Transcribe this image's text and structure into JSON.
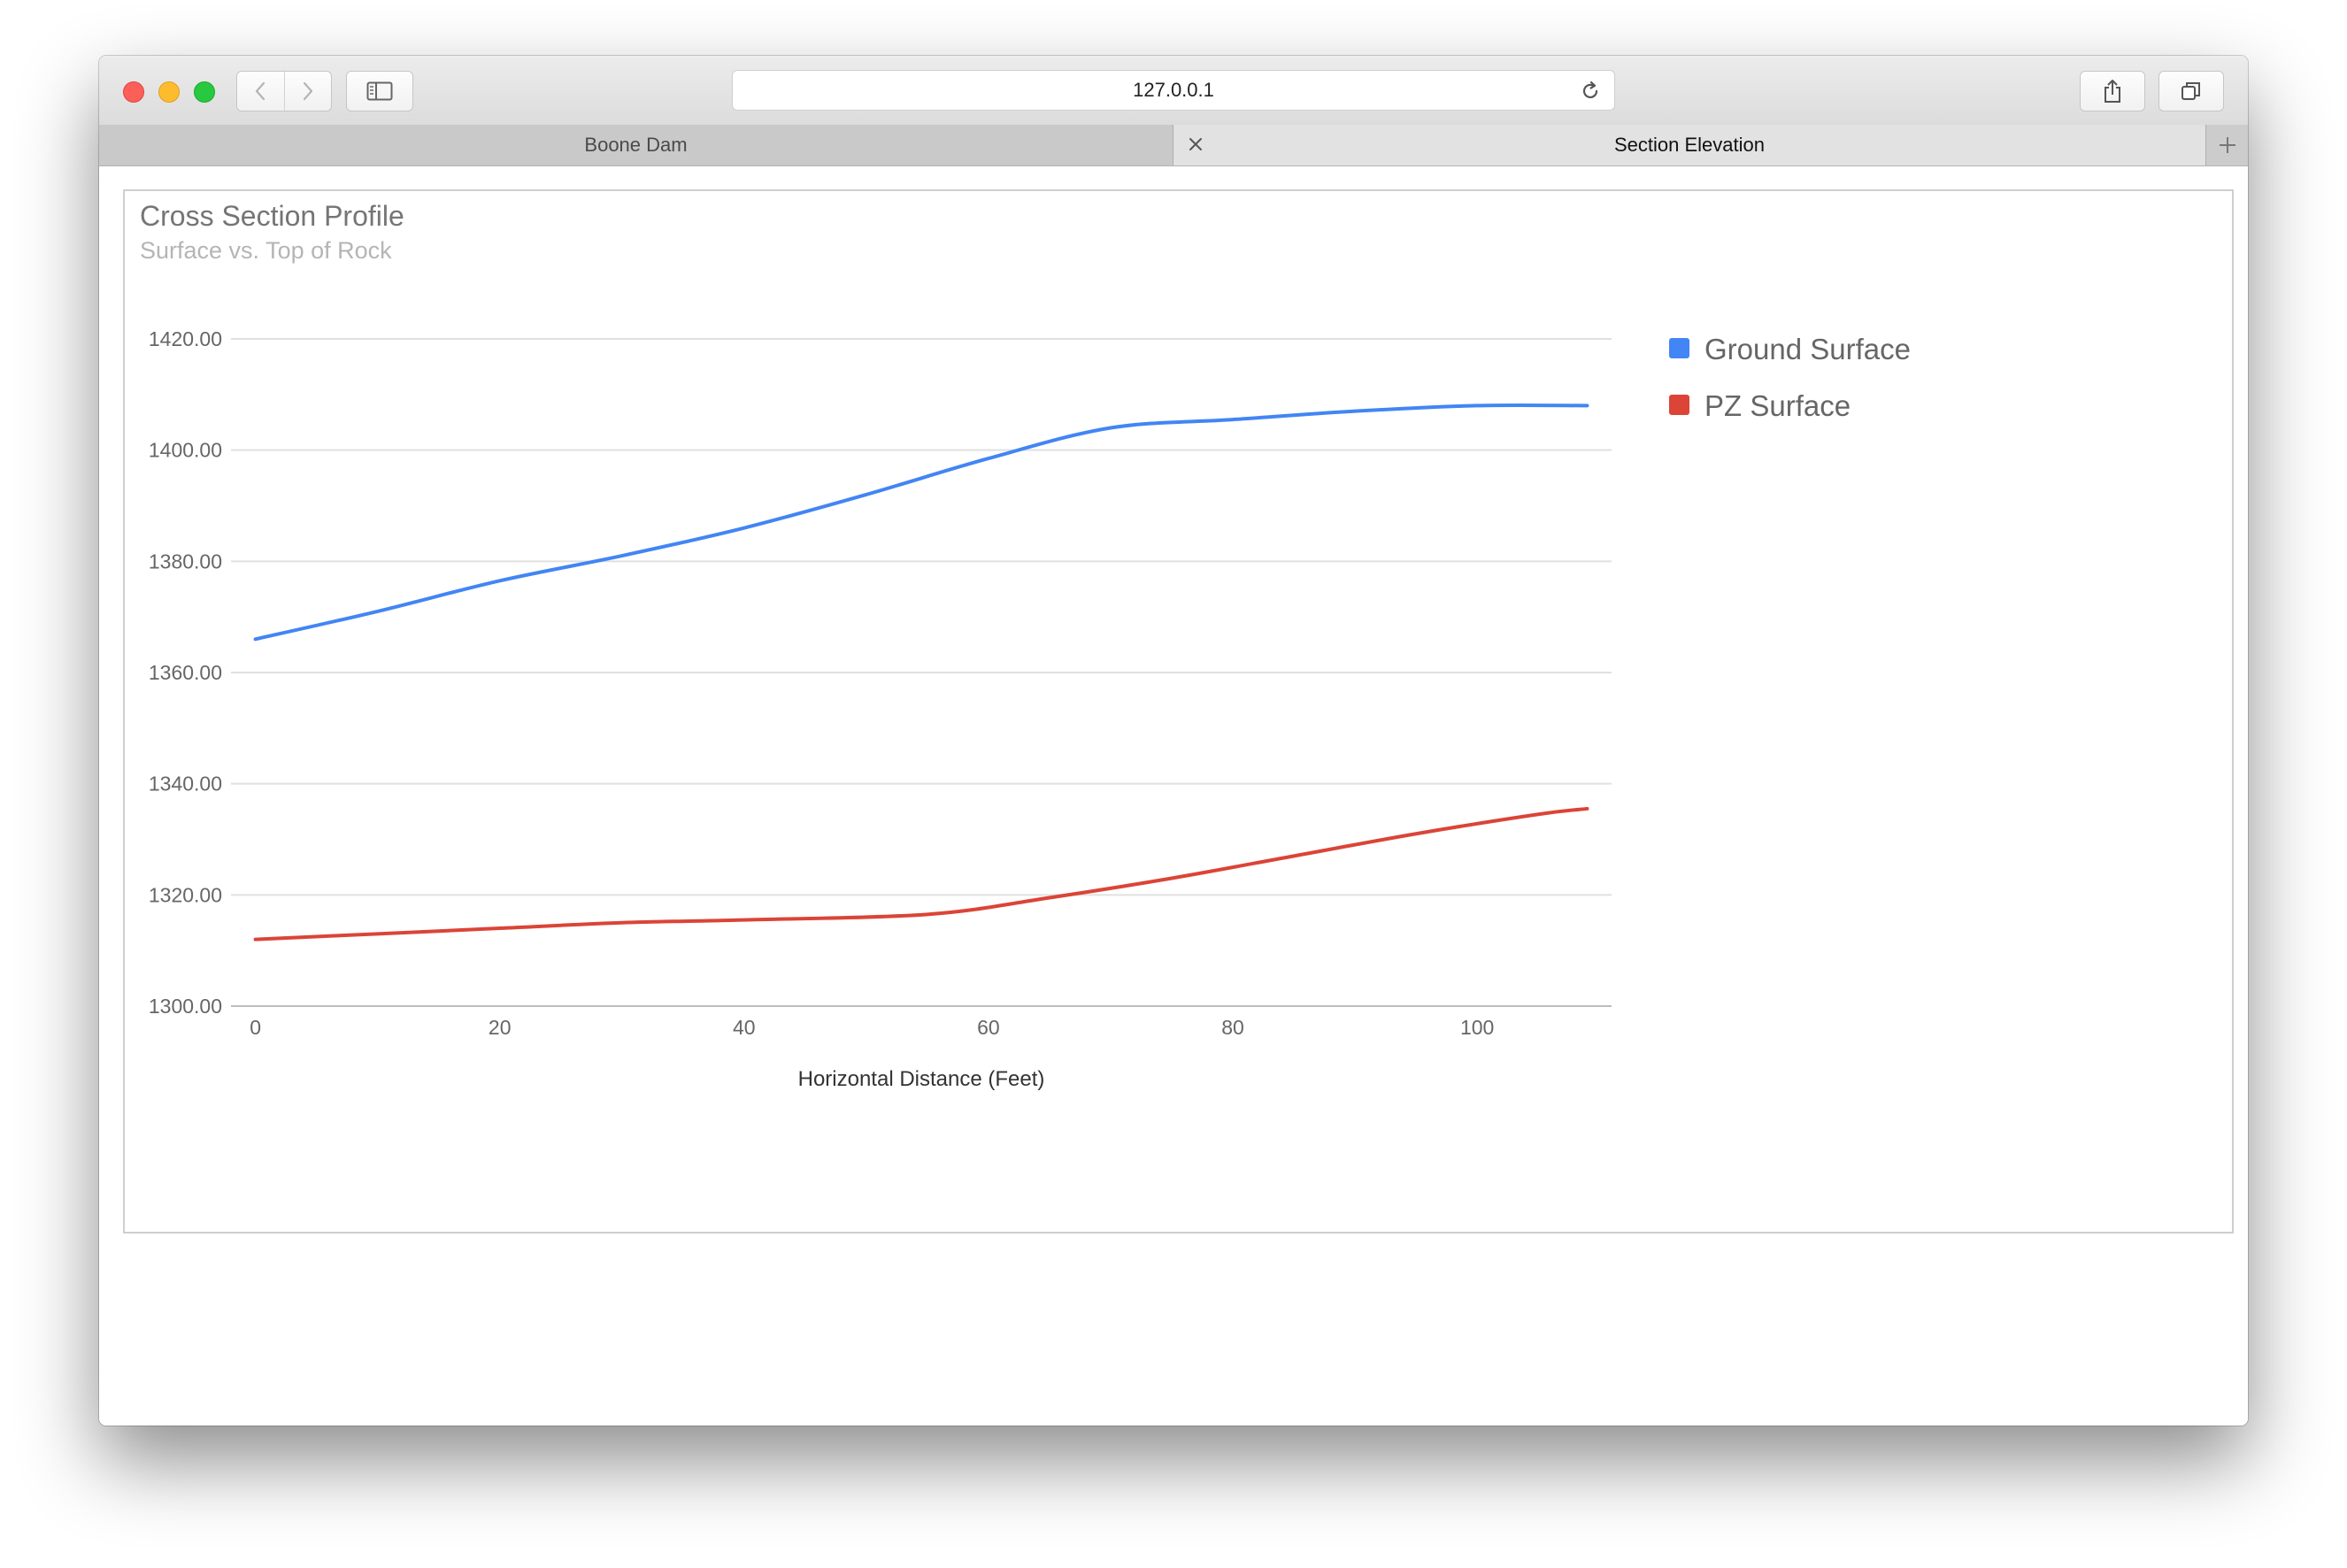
{
  "browser": {
    "url": "127.0.0.1",
    "tabs": [
      {
        "label": "Boone Dam",
        "active": false
      },
      {
        "label": "Section Elevation",
        "active": true
      }
    ],
    "icons": {
      "back": "chevron-left-icon",
      "forward": "chevron-right-icon",
      "sidebar": "sidebar-icon",
      "reload": "reload-icon",
      "share": "share-icon",
      "tabs_overview": "tabs-overview-icon",
      "close_tab": "close-icon",
      "new_tab": "plus-icon"
    }
  },
  "chart_data": {
    "type": "line",
    "title": "Cross Section Profile",
    "subtitle": "Surface vs. Top of Rock",
    "xlabel": "Horizontal Distance (Feet)",
    "ylabel": "",
    "xlim": [
      -2,
      111
    ],
    "ylim": [
      1300,
      1420
    ],
    "x_ticks": [
      0,
      20,
      40,
      60,
      80,
      100
    ],
    "y_ticks": [
      1300,
      1320,
      1340,
      1360,
      1380,
      1400,
      1420
    ],
    "y_tick_labels": [
      "1300.00",
      "1320.00",
      "1340.00",
      "1360.00",
      "1380.00",
      "1400.00",
      "1420.00"
    ],
    "grid": "horizontal",
    "legend_position": "right",
    "series": [
      {
        "name": "Ground Surface",
        "color": "#4285f4",
        "x": [
          0,
          10,
          20,
          30,
          40,
          50,
          60,
          70,
          80,
          90,
          100,
          109
        ],
        "y": [
          1366,
          1371,
          1376.5,
          1381,
          1386,
          1392,
          1398.5,
          1404,
          1405.5,
          1407,
          1408,
          1408
        ]
      },
      {
        "name": "PZ Surface",
        "color": "#db4437",
        "x": [
          0,
          10,
          20,
          30,
          40,
          55,
          65,
          75,
          85,
          95,
          105,
          109
        ],
        "y": [
          1312,
          1313,
          1314,
          1315,
          1315.5,
          1316.5,
          1319.5,
          1323,
          1327,
          1331,
          1334.5,
          1335.5
        ]
      }
    ]
  }
}
